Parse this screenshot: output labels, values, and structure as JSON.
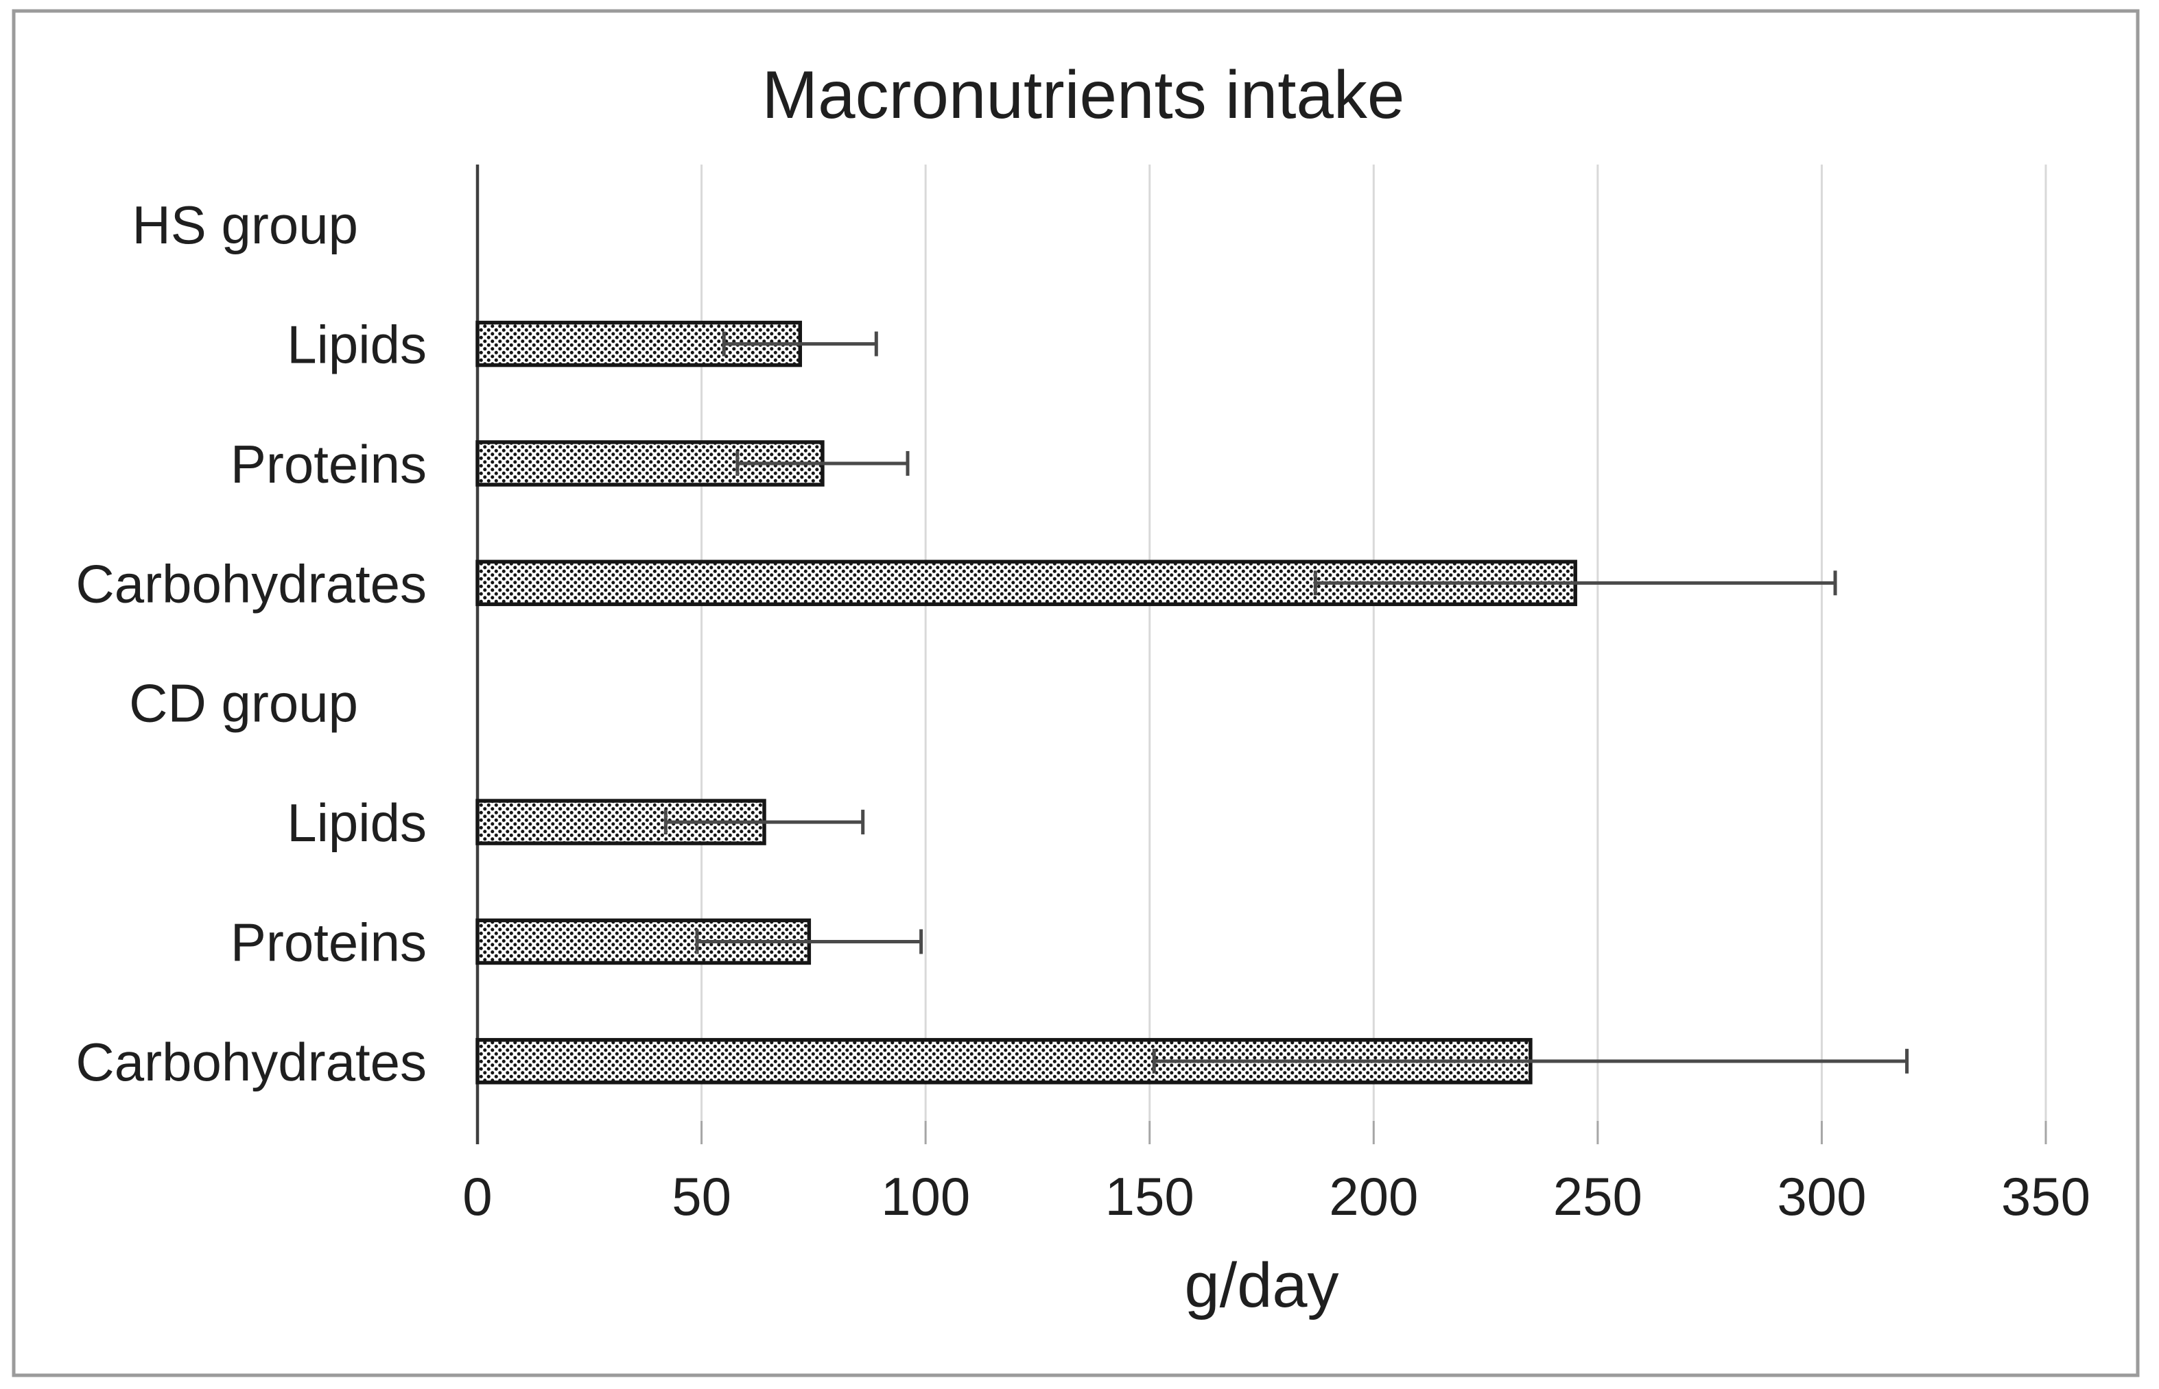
{
  "chart_data": {
    "type": "bar",
    "orientation": "horizontal",
    "title": "Macronutrients intake",
    "xlabel": "g/day",
    "xlim": [
      0,
      350
    ],
    "xticks": [
      0,
      50,
      100,
      150,
      200,
      250,
      300,
      350
    ],
    "grid": "vertical",
    "legend": "none",
    "groups": [
      {
        "label": "HS group",
        "bars": [
          {
            "category": "Lipids",
            "value": 72,
            "error": 17
          },
          {
            "category": "Proteins",
            "value": 77,
            "error": 19
          },
          {
            "category": "Carbohydrates",
            "value": 245,
            "error": 58
          }
        ]
      },
      {
        "label": "CD group",
        "bars": [
          {
            "category": "Lipids",
            "value": 64,
            "error": 22
          },
          {
            "category": "Proteins",
            "value": 74,
            "error": 25
          },
          {
            "category": "Carbohydrates",
            "value": 235,
            "error": 84
          }
        ]
      }
    ],
    "bar_style": "white fill with black halftone dot pattern, black border",
    "colors": {
      "background": "#ffffff",
      "frame": "#9b9b9b",
      "grid": "#d9d9d9",
      "axis": "#3f3f3f",
      "tick": "#a6a6a6",
      "bar_border": "#161616",
      "bar_dot": "#141414",
      "error_bar": "#4a4a4a",
      "text": "#1f1f1f"
    }
  }
}
